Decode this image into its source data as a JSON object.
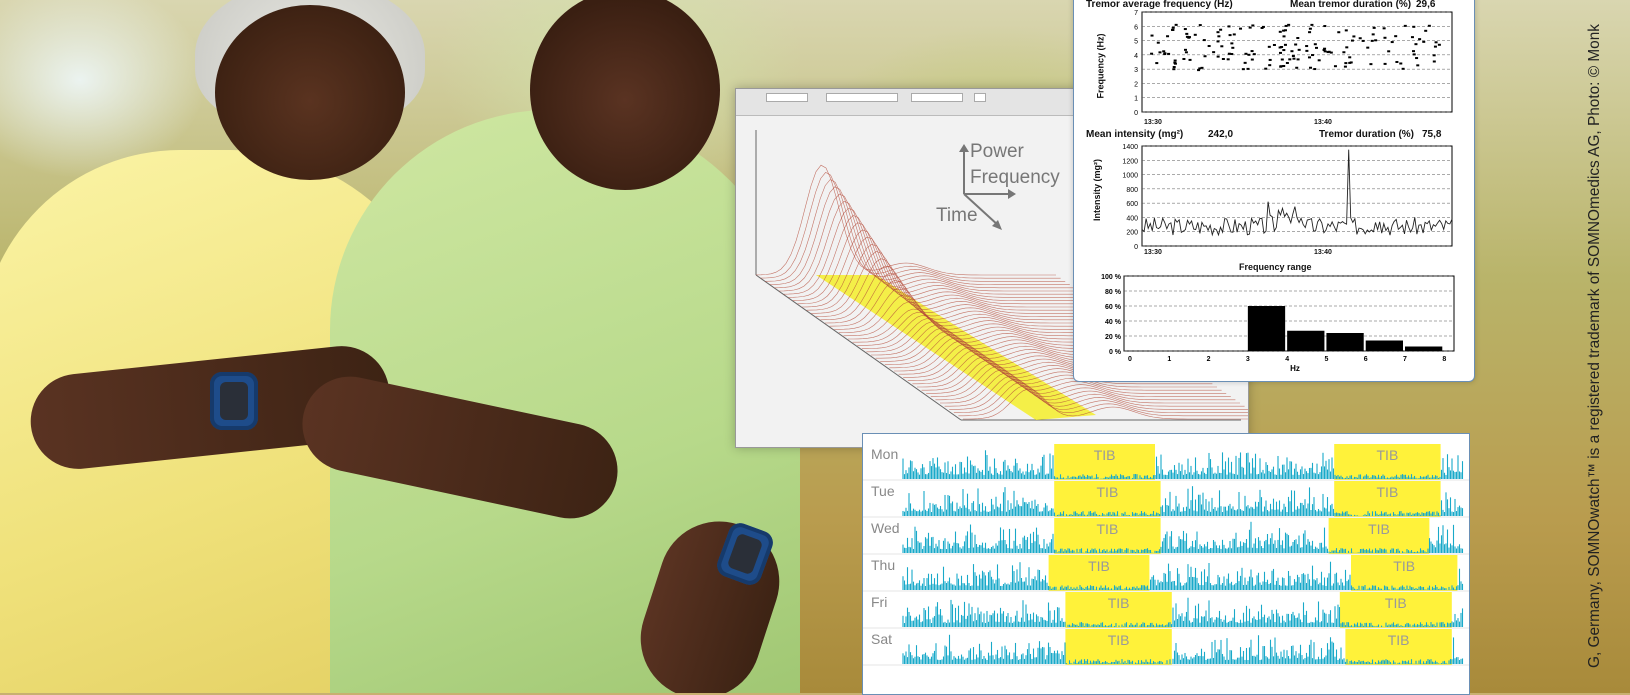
{
  "spectrum_panel": {
    "axis_labels": {
      "power": "Power",
      "frequency": "Frequency",
      "time": "Time"
    }
  },
  "tremor_report": {
    "avg_freq_title": "Tremor average frequency (Hz)",
    "mean_duration_title": "Mean tremor duration (%)",
    "mean_duration_value": "29,6",
    "freq_axis": "Frequency (Hz)",
    "freq_ticks": [
      "7",
      "6",
      "5",
      "4",
      "3",
      "2",
      "1",
      "0"
    ],
    "time_ticks": [
      "13:30",
      "13:40"
    ],
    "mean_intensity_title": "Mean intensity (mg²)",
    "mean_intensity_value": "242,0",
    "tremor_duration_title": "Tremor duration (%)",
    "tremor_duration_value": "75,8",
    "intensity_axis": "Intensity (mg²)",
    "intensity_ticks": [
      "1400",
      "1200",
      "1000",
      "800",
      "600",
      "400",
      "200",
      "0"
    ],
    "freq_range_title": "Frequency range",
    "range_pct_ticks": [
      "100 %",
      "80 %",
      "60 %",
      "40 %",
      "20 %",
      "0 %"
    ],
    "range_hz_ticks": [
      "0",
      "1",
      "2",
      "3",
      "4",
      "5",
      "6",
      "7",
      "8"
    ],
    "range_x_label": "Hz"
  },
  "chart_data": {
    "type": "bar",
    "title": "Frequency range",
    "xlabel": "Hz",
    "ylabel": "",
    "ylim": [
      0,
      100
    ],
    "categories": [
      "3-4",
      "4-5",
      "5-6",
      "6-7",
      "7-8"
    ],
    "values": [
      60,
      27,
      24,
      14,
      6
    ]
  },
  "actigraphy": {
    "tib_label": "TIB",
    "days": [
      {
        "name": "Mon",
        "tib": [
          [
            0.27,
            0.45
          ],
          [
            0.77,
            0.96
          ]
        ]
      },
      {
        "name": "Tue",
        "tib": [
          [
            0.27,
            0.46
          ],
          [
            0.77,
            0.96
          ]
        ]
      },
      {
        "name": "Wed",
        "tib": [
          [
            0.27,
            0.46
          ],
          [
            0.76,
            0.94
          ]
        ]
      },
      {
        "name": "Thu",
        "tib": [
          [
            0.26,
            0.44
          ],
          [
            0.8,
            0.99
          ]
        ]
      },
      {
        "name": "Fri",
        "tib": [
          [
            0.29,
            0.48
          ],
          [
            0.78,
            0.98
          ]
        ]
      },
      {
        "name": "Sat",
        "tib": [
          [
            0.29,
            0.48
          ],
          [
            0.79,
            0.98
          ]
        ]
      }
    ]
  },
  "copyright": "G, Germany,  SOMNOwatch™ is a registered trademark of SOMNOmedics AG, Photo: © Monk"
}
